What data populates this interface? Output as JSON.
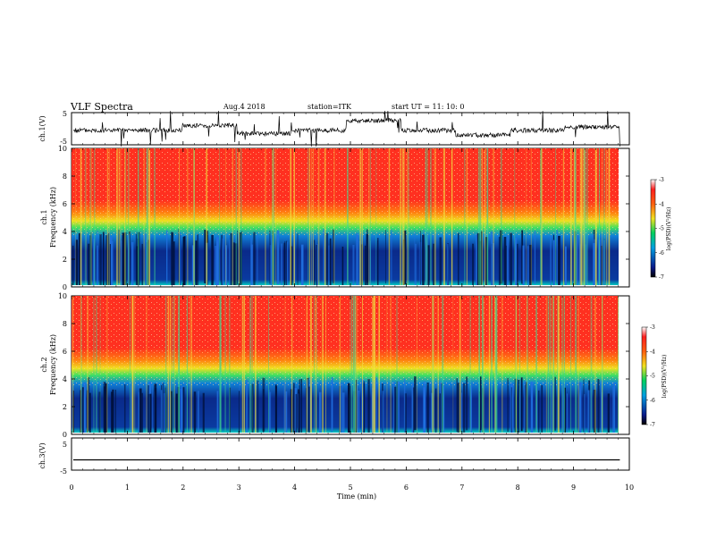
{
  "header": {
    "title": "VLF Spectra",
    "date": "Aug.4   2018",
    "station": "station=ITK",
    "start": "start  UT =   11: 10: 0"
  },
  "chart_data": [
    {
      "type": "line",
      "panel": "ch1_waveform",
      "ylabel": "ch.1(V)",
      "ylim": [
        -5,
        5
      ],
      "yticks": [
        5,
        -5
      ],
      "x_range_min": [
        0,
        9.83
      ],
      "series": [
        {
          "values": [
            -0.5,
            -0.5,
            1.0,
            -1.5,
            -0.5,
            2.5,
            -0.5,
            -2.0,
            -0.5,
            0.5,
            -0.5
          ]
        }
      ]
    },
    {
      "type": "heatmap",
      "panel": "ch1_spectrogram",
      "ylabel": "ch.1\nFrequency  (kHz)",
      "ylim": [
        0,
        10
      ],
      "yticks": [
        0,
        2,
        4,
        6,
        8,
        10
      ],
      "colorbar": {
        "label": "log(PSD)(V²/Hz)",
        "range": [
          -7,
          -3
        ],
        "ticks": [
          -3,
          -4,
          -5,
          -6,
          -7
        ]
      }
    },
    {
      "type": "heatmap",
      "panel": "ch2_spectrogram",
      "ylabel": "ch.2\nFrequency  (kHz)",
      "ylim": [
        0,
        10
      ],
      "yticks": [
        0,
        2,
        4,
        6,
        8,
        10
      ],
      "colorbar": {
        "label": "log(PSD)(V²/Hz)",
        "range": [
          -7,
          -3
        ],
        "ticks": [
          -3,
          -4,
          -5,
          -6,
          -7
        ]
      }
    },
    {
      "type": "line",
      "panel": "ch3_waveform",
      "ylabel": "ch.3(V)",
      "ylim": [
        -5,
        5
      ],
      "yticks": [
        5,
        -5
      ],
      "x_range_min": [
        0,
        9.83
      ],
      "series": [
        {
          "values": [
            -1.8,
            -1.8,
            -1.8,
            -1.8,
            -1.8
          ]
        }
      ]
    }
  ],
  "xaxis": {
    "label": "Time  (min)",
    "range": [
      0,
      10
    ],
    "ticks": [
      "0",
      "1",
      "2",
      "3",
      "4",
      "5",
      "6",
      "7",
      "8",
      "9",
      "10"
    ]
  },
  "colors": {
    "spectro_low": "#0a1a7a",
    "spectro_mid": "#22c8e0",
    "spectro_band": "#f0e020",
    "spectro_high": "#ff3020"
  }
}
